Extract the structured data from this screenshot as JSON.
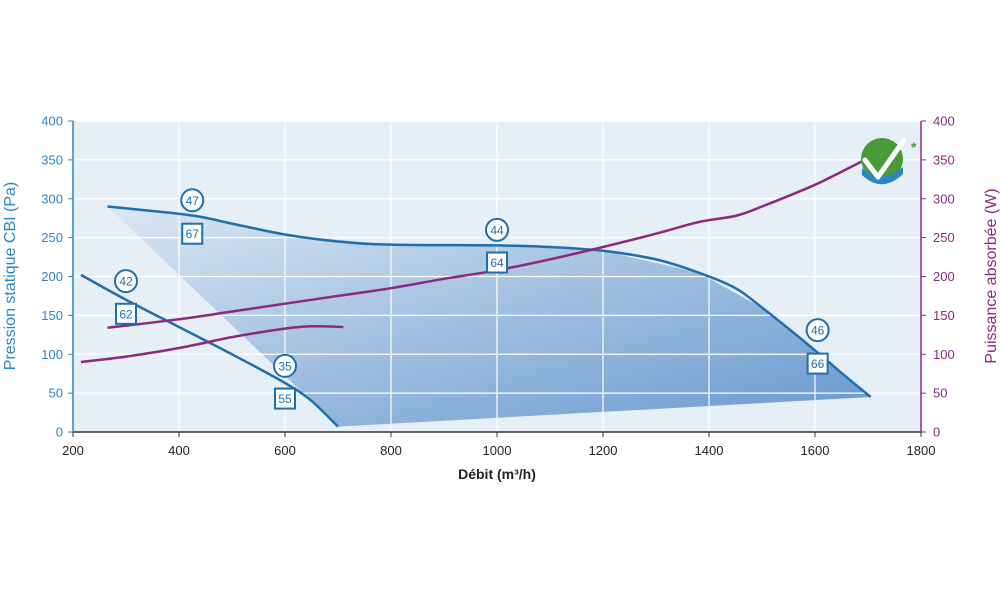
{
  "chart_data": {
    "type": "line",
    "xlabel": "Débit (m³/h)",
    "ylabel": "Pression statique CBI (Pa)",
    "y2label": "Puissance absorbée (W)",
    "xlim": [
      200,
      1800
    ],
    "ylim": [
      0,
      400
    ],
    "y2lim": [
      0,
      400
    ],
    "x_ticks": [
      200,
      400,
      600,
      800,
      1000,
      1200,
      1400,
      1600,
      1800
    ],
    "y_ticks": [
      0,
      50,
      100,
      150,
      200,
      250,
      300,
      350,
      400
    ],
    "y2_ticks": [
      0,
      50,
      100,
      150,
      200,
      250,
      300,
      350,
      400
    ],
    "grid": true,
    "colors": {
      "pressure": "#1f6fae",
      "power": "#8b2a7e",
      "axis_left": "#2e86c1",
      "axis_right": "#8b2a7e",
      "area_light": "#dbe7f3",
      "area_dark": "#5f93cc",
      "plot_bg": "#e6eef6",
      "logo_green": "#4a9a3a",
      "logo_blue": "#2e86c1"
    },
    "operating_area": [
      [
        265,
        290
      ],
      [
        420,
        279
      ],
      [
        600,
        254
      ],
      [
        800,
        241
      ],
      [
        1000,
        240
      ],
      [
        1200,
        233
      ],
      [
        1380,
        205
      ],
      [
        1500,
        160
      ],
      [
        1600,
        105
      ],
      [
        1705,
        45
      ],
      [
        700,
        7
      ]
    ],
    "pressure_series": [
      {
        "points": [
          [
            265,
            290
          ],
          [
            420,
            279
          ],
          [
            500,
            268
          ],
          [
            600,
            254
          ],
          [
            700,
            245
          ],
          [
            800,
            241
          ],
          [
            1000,
            240
          ],
          [
            1100,
            238
          ],
          [
            1200,
            233
          ],
          [
            1300,
            222
          ],
          [
            1380,
            205
          ],
          [
            1450,
            185
          ],
          [
            1500,
            160
          ],
          [
            1550,
            133
          ],
          [
            1600,
            105
          ],
          [
            1650,
            76
          ],
          [
            1705,
            45
          ]
        ]
      },
      {
        "points": [
          [
            215,
            202
          ],
          [
            300,
            170
          ],
          [
            400,
            135
          ],
          [
            500,
            100
          ],
          [
            600,
            63
          ],
          [
            650,
            40
          ],
          [
            700,
            7
          ]
        ]
      }
    ],
    "power_series": [
      {
        "points": [
          [
            265,
            134
          ],
          [
            400,
            145
          ],
          [
            500,
            155
          ],
          [
            600,
            165
          ],
          [
            700,
            175
          ],
          [
            800,
            185
          ],
          [
            900,
            197
          ],
          [
            1000,
            208
          ],
          [
            1100,
            222
          ],
          [
            1200,
            238
          ],
          [
            1300,
            255
          ],
          [
            1380,
            270
          ],
          [
            1450,
            278
          ],
          [
            1500,
            290
          ],
          [
            1600,
            318
          ],
          [
            1665,
            340
          ],
          [
            1700,
            352
          ]
        ]
      },
      {
        "points": [
          [
            215,
            90
          ],
          [
            300,
            97
          ],
          [
            400,
            108
          ],
          [
            500,
            122
          ],
          [
            600,
            133
          ],
          [
            650,
            136
          ],
          [
            710,
            135
          ]
        ]
      }
    ],
    "circle_labels": [
      {
        "text": "47",
        "x": 425,
        "y": 298
      },
      {
        "text": "44",
        "x": 1000,
        "y": 260
      },
      {
        "text": "42",
        "x": 300,
        "y": 194
      },
      {
        "text": "35",
        "x": 600,
        "y": 85
      },
      {
        "text": "46",
        "x": 1605,
        "y": 131
      }
    ],
    "square_labels": [
      {
        "text": "67",
        "x": 425,
        "y": 255
      },
      {
        "text": "64",
        "x": 1000,
        "y": 218
      },
      {
        "text": "62",
        "x": 300,
        "y": 152
      },
      {
        "text": "55",
        "x": 600,
        "y": 43
      },
      {
        "text": "66",
        "x": 1605,
        "y": 88
      }
    ],
    "logo_asterisk": "*"
  }
}
